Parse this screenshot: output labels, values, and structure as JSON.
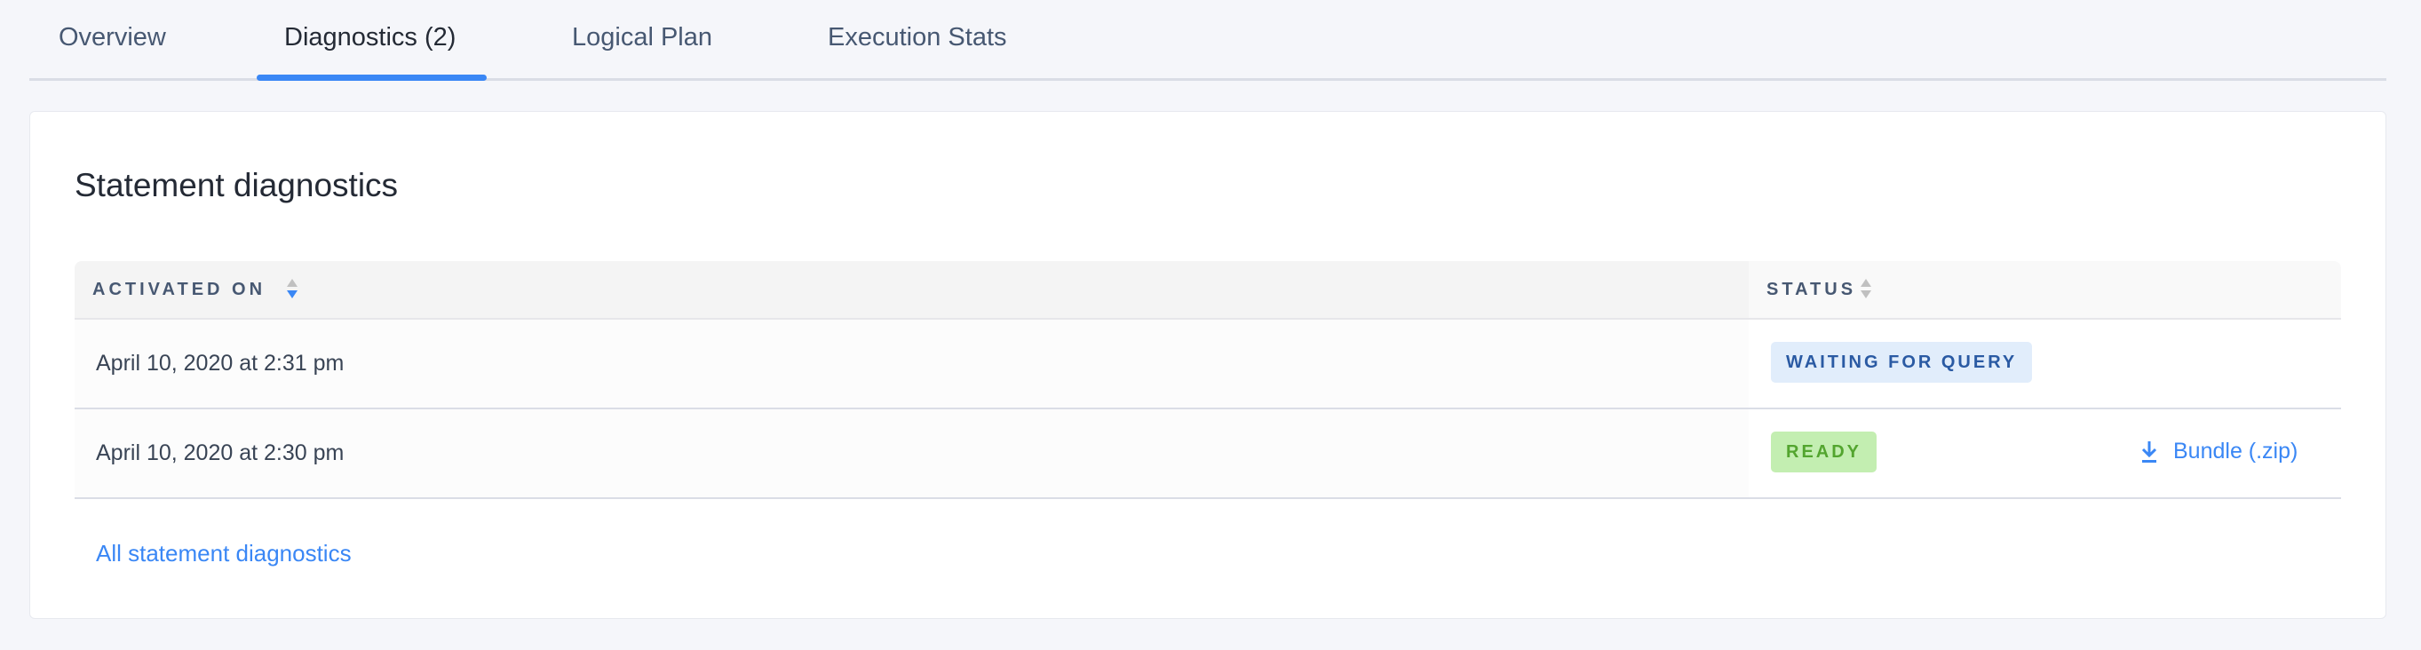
{
  "tabs": [
    {
      "label": "Overview",
      "active": false
    },
    {
      "label": "Diagnostics (2)",
      "active": true
    },
    {
      "label": "Logical Plan",
      "active": false
    },
    {
      "label": "Execution Stats",
      "active": false
    }
  ],
  "card": {
    "title": "Statement diagnostics",
    "columns": [
      {
        "label": "ACTIVATED ON",
        "sort": "descending"
      },
      {
        "label": "STATUS",
        "sort": "none"
      }
    ],
    "rows": [
      {
        "activated_on": "April 10, 2020 at 2:31 pm",
        "status": "WAITING FOR QUERY",
        "action": ""
      },
      {
        "activated_on": "April 10, 2020 at 2:30 pm",
        "status": "READY",
        "action": "Bundle (.zip)"
      }
    ],
    "footer_link": "All statement diagnostics"
  },
  "colors": {
    "accent": "#3a87f5",
    "waiting_bg": "#e1edfb",
    "waiting_text": "#2a5aa3",
    "ready_bg": "#c3eeb1",
    "ready_text": "#53a52f"
  }
}
